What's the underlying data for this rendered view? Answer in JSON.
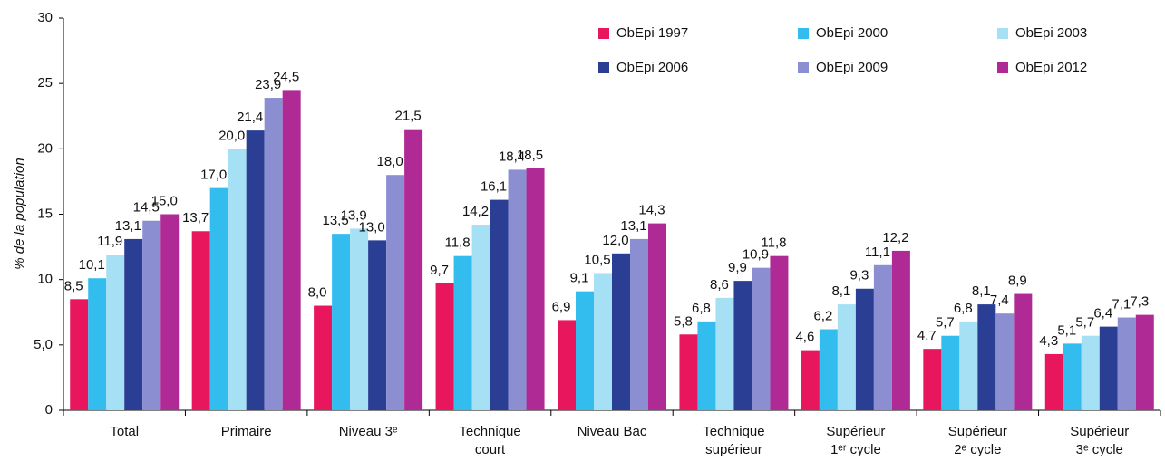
{
  "chart_data": {
    "type": "bar",
    "y_label": "% de la population",
    "categories": [
      "Total",
      "Primaire",
      "Niveau 3ᵉ",
      "Technique\ncourt",
      "Niveau Bac",
      "Technique\nsupérieur",
      "Supérieur\n1ᵉʳ cycle",
      "Supérieur\n2ᵉ cycle",
      "Supérieur\n3ᵉ cycle"
    ],
    "series": [
      {
        "name": "ObEpi 1997",
        "color": "#e8175d",
        "values": [
          8.5,
          13.7,
          8.0,
          9.7,
          6.9,
          5.8,
          4.6,
          4.7,
          4.3
        ],
        "value_labels": [
          "8,5",
          "13,7",
          "8,0",
          "9,7",
          "6,9",
          "5,8",
          "4,6",
          "4,7",
          "4,3"
        ]
      },
      {
        "name": "ObEpi 2000",
        "color": "#33bdef",
        "values": [
          10.1,
          17.0,
          13.5,
          11.8,
          9.1,
          6.8,
          6.2,
          5.7,
          5.1
        ],
        "value_labels": [
          "10,1",
          "17,0",
          "13,5",
          "11,8",
          "9,1",
          "6,8",
          "6,2",
          "5,7",
          "5,1"
        ]
      },
      {
        "name": "ObEpi 2003",
        "color": "#a6e0f5",
        "values": [
          11.9,
          20.0,
          13.9,
          14.2,
          10.5,
          8.6,
          8.1,
          6.8,
          5.7
        ],
        "value_labels": [
          "11,9",
          "20,0",
          "13,9",
          "14,2",
          "10,5",
          "8,6",
          "8,1",
          "6,8",
          "5,7"
        ]
      },
      {
        "name": "ObEpi 2006",
        "color": "#2a3f94",
        "values": [
          13.1,
          21.4,
          13.0,
          16.1,
          12.0,
          9.9,
          9.3,
          8.1,
          6.4
        ],
        "value_labels": [
          "13,1",
          "21,4",
          "13,0",
          "16,1",
          "12,0",
          "9,9",
          "9,3",
          "8,1",
          "6,4"
        ]
      },
      {
        "name": "ObEpi 2009",
        "color": "#8b8fd2",
        "values": [
          14.5,
          23.9,
          18.0,
          18.4,
          13.1,
          10.9,
          11.1,
          7.4,
          7.1
        ],
        "value_labels": [
          "14,5",
          "23,9",
          "18,0",
          "18,4",
          "13,1",
          "10,9",
          "11,1",
          "7,4",
          "7,1"
        ]
      },
      {
        "name": "ObEpi 2012",
        "color": "#b02a95",
        "values": [
          15.0,
          24.5,
          21.5,
          18.5,
          14.3,
          11.8,
          12.2,
          8.9,
          7.3
        ],
        "value_labels": [
          "15,0",
          "24,5",
          "21,5",
          "18,5",
          "14,3",
          "11,8",
          "12,2",
          "8,9",
          "7,3"
        ]
      }
    ],
    "ylim": [
      0,
      30
    ],
    "yticks": [
      0,
      {
        "value": 5,
        "label": "5,0"
      },
      10,
      15,
      20,
      25,
      30
    ],
    "legend": "top-right"
  }
}
